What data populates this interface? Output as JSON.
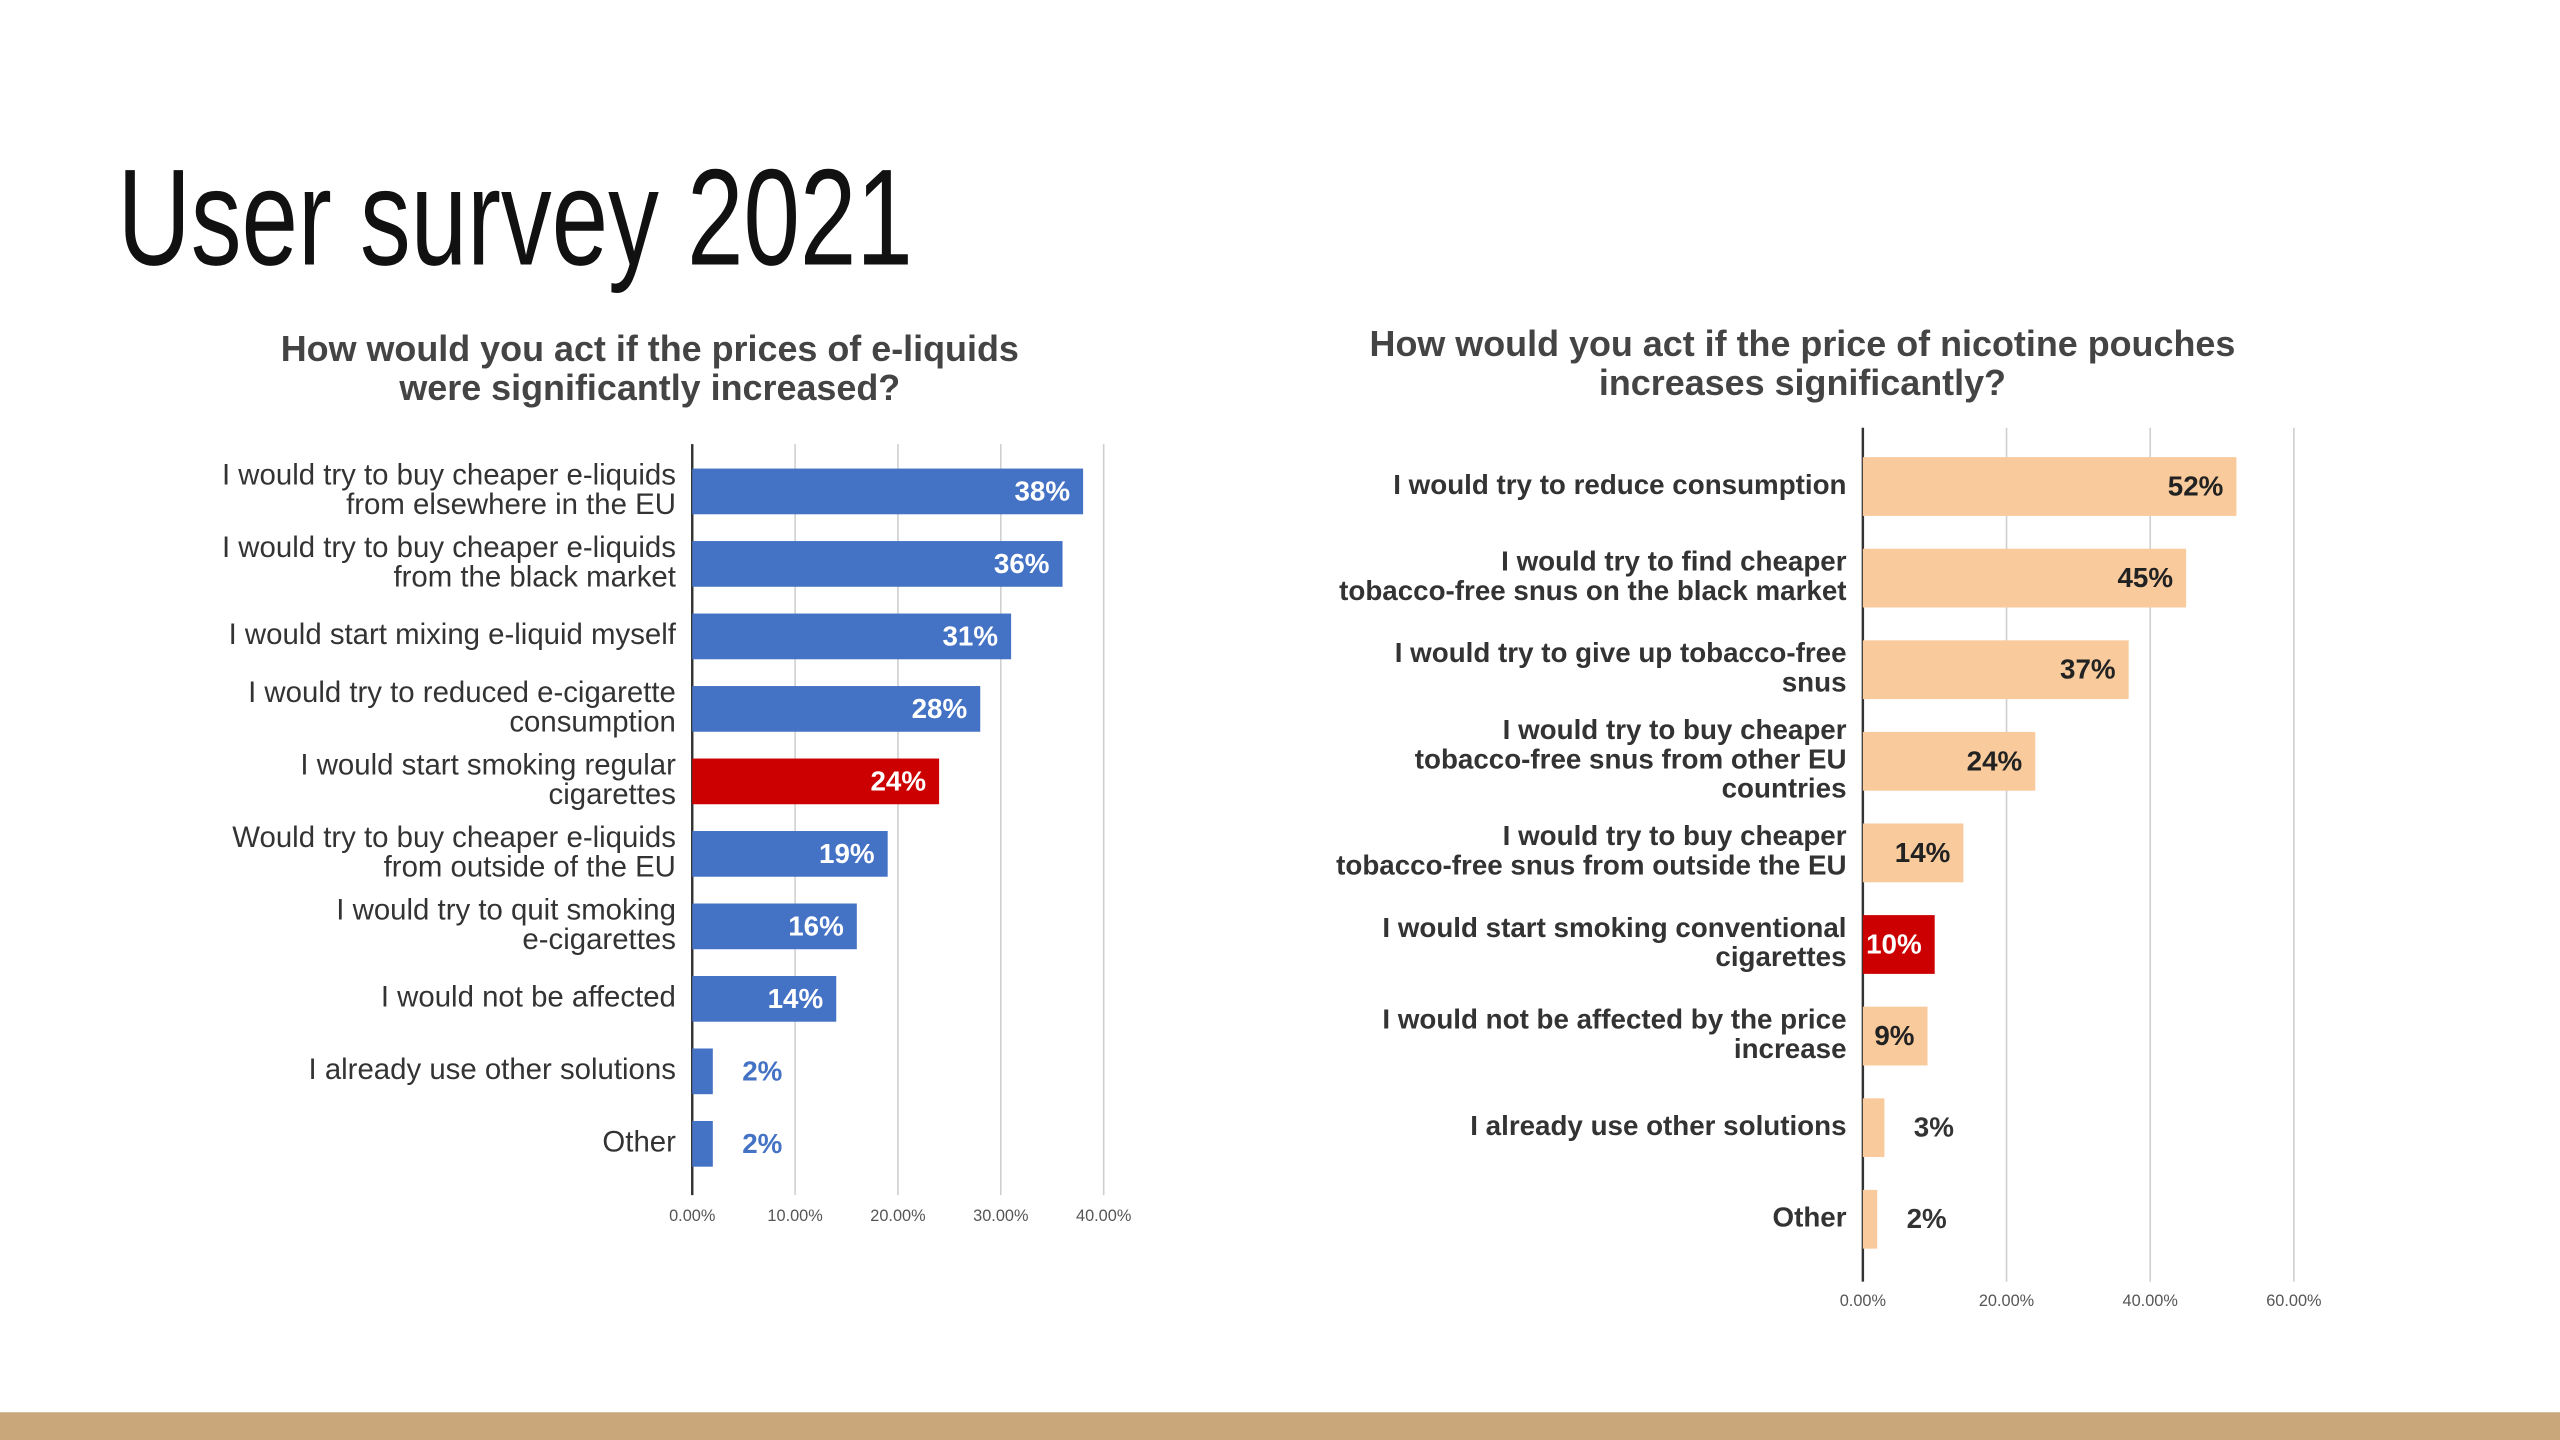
{
  "title": "User survey 2021",
  "chart_data": [
    {
      "type": "barh",
      "title": "How would you act if the prices of e-liquids\nwere significantly increased?",
      "categories": [
        "I would try to buy cheaper e-liquids\nfrom elsewhere in the EU",
        "I would try to buy cheaper e-liquids\nfrom the black market",
        "I would start mixing e-liquid myself",
        "I would try to reduced e-cigarette\nconsumption",
        "I would start smoking regular\ncigarettes",
        "Would try to buy cheaper e-liquids\nfrom outside of the EU",
        "I would try to quit smoking\ne-cigarettes",
        "I would not be affected",
        "I already use other solutions",
        "Other"
      ],
      "values": [
        38,
        36,
        31,
        28,
        24,
        19,
        16,
        14,
        2,
        2
      ],
      "value_labels": [
        "38%",
        "36%",
        "31%",
        "28%",
        "24%",
        "19%",
        "16%",
        "14%",
        "2%",
        "2%"
      ],
      "color": "#4472c4",
      "colors": [
        "#4472c4",
        "#4472c4",
        "#4472c4",
        "#4472c4",
        "#cc0000",
        "#4472c4",
        "#4472c4",
        "#4472c4",
        "#4472c4",
        "#4472c4"
      ],
      "xlim": [
        0,
        40
      ],
      "xticks": [
        {
          "value": 0,
          "label": "0.00%"
        },
        {
          "value": 10,
          "label": "10.00%"
        },
        {
          "value": 20,
          "label": "20.00%"
        },
        {
          "value": 30,
          "label": "30.00%"
        },
        {
          "value": 40,
          "label": "40.00%"
        }
      ],
      "grid": true
    },
    {
      "type": "barh",
      "title": "How would you act if the price of nicotine pouches\nincreases significantly?",
      "categories": [
        "I would try to reduce consumption",
        "I would try to find cheaper\ntobacco-free snus on the black market",
        "I would try to give up tobacco-free\nsnus",
        "I would try to buy cheaper\ntobacco-free snus from other EU\ncountries",
        "I would try to buy cheaper\ntobacco-free snus from outside the EU",
        "I would start smoking conventional\ncigarettes",
        "I would not be affected by the price\nincrease",
        "I already use other solutions",
        "Other"
      ],
      "values": [
        52,
        45,
        37,
        24,
        14,
        10,
        9,
        3,
        2
      ],
      "value_labels": [
        "52%",
        "45%",
        "37%",
        "24%",
        "14%",
        "10%",
        "9%",
        "3%",
        "2%"
      ],
      "color": "#f9cb9c",
      "colors": [
        "#f9cb9c",
        "#f9cb9c",
        "#f9cb9c",
        "#f9cb9c",
        "#f9cb9c",
        "#cc0000",
        "#f9cb9c",
        "#f9cb9c",
        "#f9cb9c"
      ],
      "xlim": [
        0,
        60
      ],
      "xticks": [
        {
          "value": 0,
          "label": "0.00%"
        },
        {
          "value": 20,
          "label": "20.00%"
        },
        {
          "value": 40,
          "label": "40.00%"
        },
        {
          "value": 60,
          "label": "60.00%"
        }
      ],
      "grid": true
    }
  ]
}
